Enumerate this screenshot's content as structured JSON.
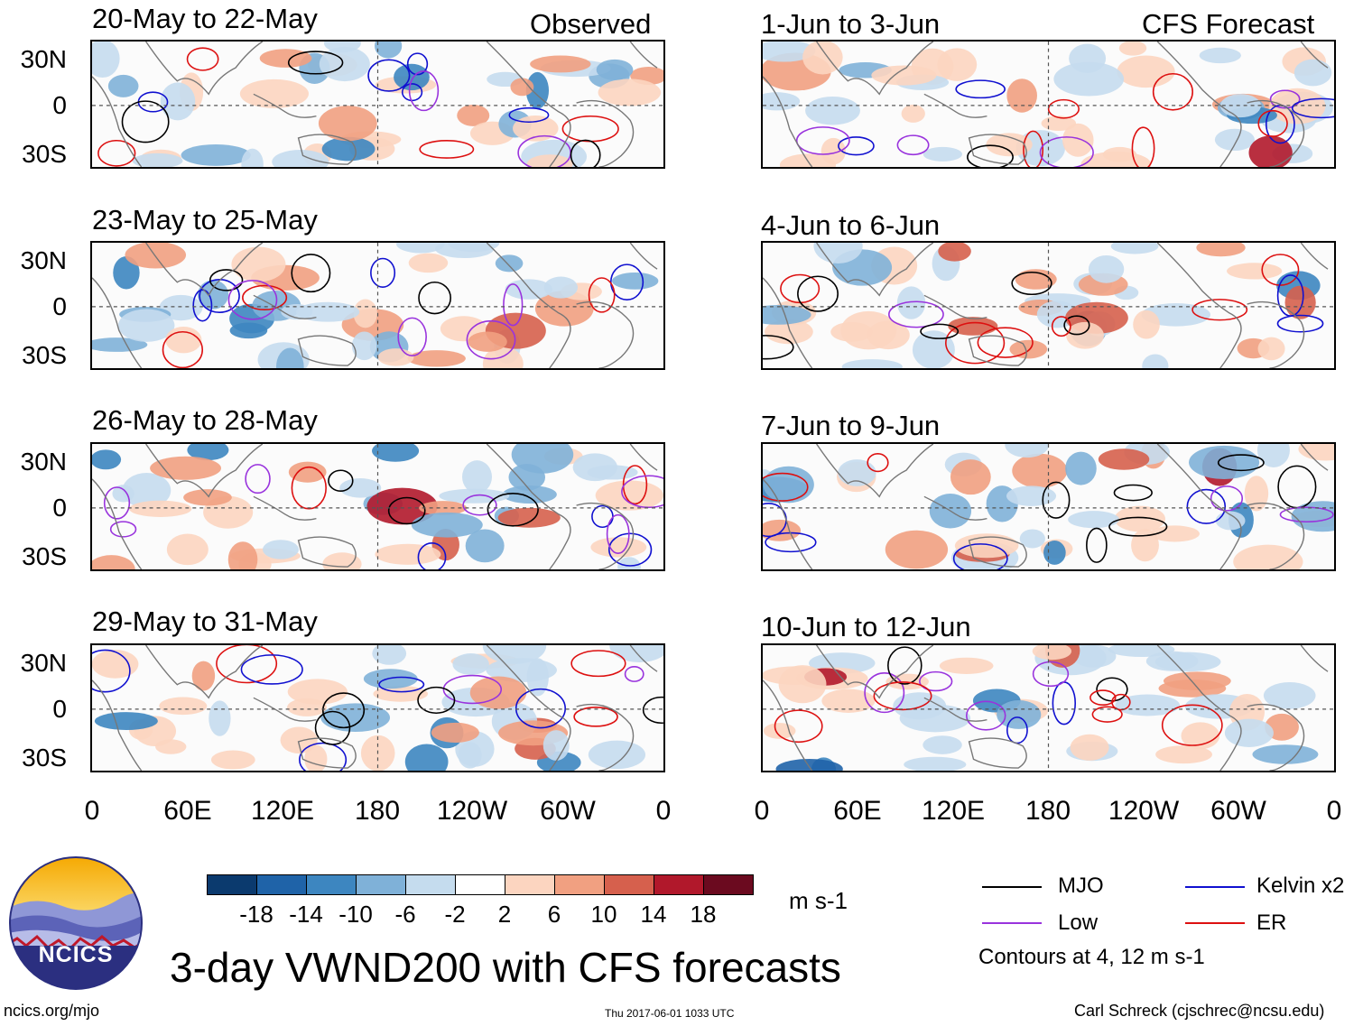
{
  "left_panels": [
    {
      "title": "20-May to 22-May",
      "tag": "Observed"
    },
    {
      "title": "23-May to 25-May",
      "tag": ""
    },
    {
      "title": "26-May to 28-May",
      "tag": ""
    },
    {
      "title": "29-May to 31-May",
      "tag": ""
    }
  ],
  "right_panels": [
    {
      "title": "1-Jun to 3-Jun",
      "tag": "CFS Forecast"
    },
    {
      "title": "4-Jun to 6-Jun",
      "tag": ""
    },
    {
      "title": "7-Jun to 9-Jun",
      "tag": ""
    },
    {
      "title": "10-Jun to 12-Jun",
      "tag": ""
    }
  ],
  "lat_labels": [
    "30N",
    "0",
    "30S"
  ],
  "lon_labels": [
    "0",
    "60E",
    "120E",
    "180",
    "120W",
    "60W",
    "0"
  ],
  "colorbar": {
    "labels": [
      "-18",
      "-14",
      "-10",
      "-6",
      "-2",
      "2",
      "6",
      "10",
      "14",
      "18"
    ],
    "colors": [
      "#0b3a6e",
      "#1f63a8",
      "#3d86c0",
      "#7fb1d8",
      "#c5dcee",
      "#ffffff",
      "#fcd5c0",
      "#f1a081",
      "#d6604d",
      "#b1182b",
      "#6b0a1f"
    ],
    "units": "m s-1"
  },
  "legend": {
    "items": [
      {
        "label": "MJO",
        "color": "#000000"
      },
      {
        "label": "Kelvin x2",
        "color": "#1010d0"
      },
      {
        "label": "Low",
        "color": "#9933dd"
      },
      {
        "label": "ER",
        "color": "#dd1010"
      }
    ],
    "note": "Contours at 4, 12 m s-1"
  },
  "logo_text": "NCICS",
  "main_title": "3-day VWND200 with CFS forecasts",
  "footer": {
    "url": "ncics.org/mjo",
    "timestamp": "Thu 2017-06-01 1033 UTC",
    "credit": "Carl Schreck (cjschrec@ncsu.edu)"
  }
}
